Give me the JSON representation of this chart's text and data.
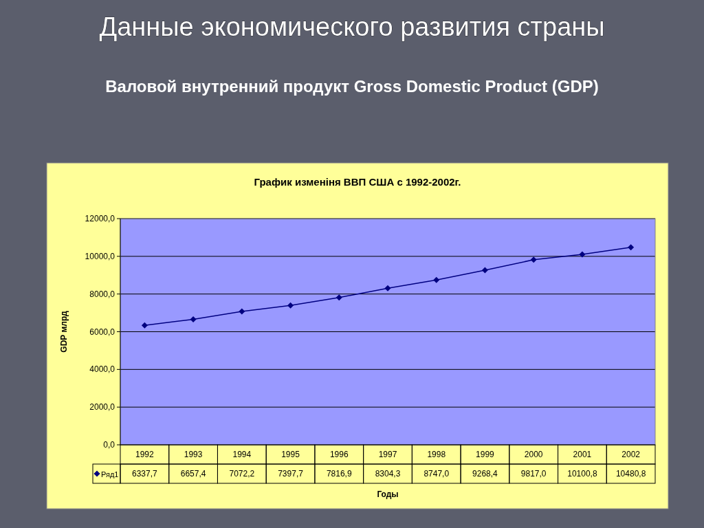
{
  "chart_data": {
    "type": "line",
    "title": "Данные экономического развития страны",
    "subtitle": "Валовой внутренний продукт Gross Domestic Product  (GDP)",
    "annotations": [
      "График изменіня ВВП США с 1992-2002г."
    ],
    "xlabel": "Годы",
    "ylabel": "GDP млрд",
    "categories": [
      "1992",
      "1993",
      "1994",
      "1995",
      "1996",
      "1997",
      "1998",
      "1999",
      "2000",
      "2001",
      "2002"
    ],
    "series": [
      {
        "name": "Ряд1",
        "color": "#000080",
        "values": [
          6337.7,
          6657.4,
          7072.2,
          7397.7,
          7816.9,
          8304.3,
          8747.0,
          9268.4,
          9817.0,
          10100.8,
          10480.8
        ],
        "value_labels": [
          "6337,7",
          "6657,4",
          "7072,2",
          "7397,7",
          "7816,9",
          "8304,3",
          "8747,0",
          "9268,4",
          "9817,0",
          "10100,8",
          "10480,8"
        ]
      }
    ],
    "ylim": [
      0,
      12000
    ],
    "yticks": [
      {
        "value": 0,
        "label": "0,0"
      },
      {
        "value": 2000,
        "label": "2000,0"
      },
      {
        "value": 4000,
        "label": "4000,0"
      },
      {
        "value": 6000,
        "label": "6000,0"
      },
      {
        "value": 8000,
        "label": "8000,0"
      },
      {
        "value": 10000,
        "label": "10000,0"
      },
      {
        "value": 12000,
        "label": "12000,0"
      }
    ],
    "grid": "y",
    "legend": "bottom left",
    "marker": "diamond",
    "line_style": "solid"
  }
}
